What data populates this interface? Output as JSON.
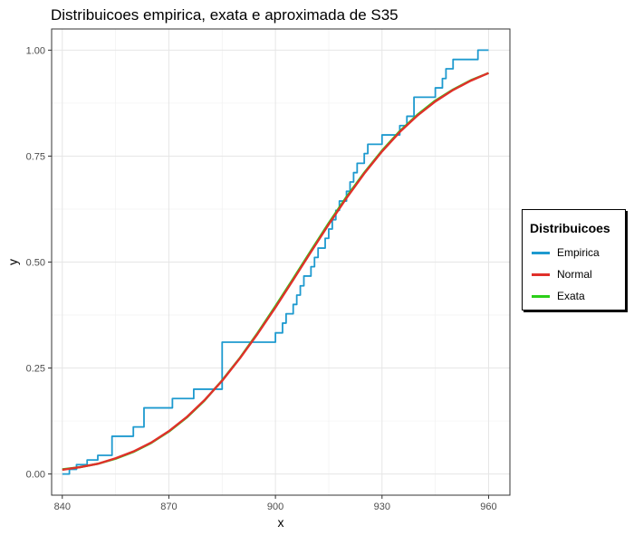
{
  "chart_data": {
    "type": "line",
    "title": "Distribuicoes empirica, exata e aproximada de S35",
    "xlabel": "x",
    "ylabel": "y",
    "xlim": [
      837,
      966
    ],
    "ylim": [
      -0.05,
      1.05
    ],
    "x_ticks": [
      840,
      870,
      900,
      930,
      960
    ],
    "y_ticks": [
      0.0,
      0.25,
      0.5,
      0.75,
      1.0
    ],
    "y_tick_labels": [
      "0.00",
      "0.25",
      "0.50",
      "0.75",
      "1.00"
    ],
    "grid": true,
    "legend": {
      "title": "Distribuicoes",
      "position": "right"
    },
    "series": [
      {
        "name": "Empirica",
        "color": "#1E9ACF",
        "step": true,
        "points": [
          [
            840,
            0.0
          ],
          [
            842,
            0.011
          ],
          [
            844,
            0.022
          ],
          [
            847,
            0.033
          ],
          [
            850,
            0.044
          ],
          [
            854,
            0.089
          ],
          [
            857,
            0.089
          ],
          [
            860,
            0.111
          ],
          [
            863,
            0.156
          ],
          [
            866,
            0.156
          ],
          [
            869,
            0.156
          ],
          [
            871,
            0.178
          ],
          [
            874,
            0.178
          ],
          [
            877,
            0.2
          ],
          [
            881,
            0.2
          ],
          [
            885,
            0.311
          ],
          [
            889,
            0.311
          ],
          [
            893,
            0.311
          ],
          [
            897,
            0.311
          ],
          [
            900,
            0.333
          ],
          [
            902,
            0.356
          ],
          [
            903,
            0.378
          ],
          [
            905,
            0.4
          ],
          [
            906,
            0.422
          ],
          [
            907,
            0.444
          ],
          [
            908,
            0.467
          ],
          [
            910,
            0.489
          ],
          [
            911,
            0.511
          ],
          [
            912,
            0.533
          ],
          [
            914,
            0.556
          ],
          [
            915,
            0.578
          ],
          [
            916,
            0.6
          ],
          [
            917,
            0.622
          ],
          [
            918,
            0.644
          ],
          [
            920,
            0.667
          ],
          [
            921,
            0.689
          ],
          [
            922,
            0.711
          ],
          [
            923,
            0.733
          ],
          [
            925,
            0.756
          ],
          [
            926,
            0.778
          ],
          [
            928,
            0.778
          ],
          [
            930,
            0.8
          ],
          [
            935,
            0.822
          ],
          [
            937,
            0.844
          ],
          [
            939,
            0.889
          ],
          [
            943,
            0.889
          ],
          [
            945,
            0.911
          ],
          [
            947,
            0.933
          ],
          [
            948,
            0.956
          ],
          [
            950,
            0.978
          ],
          [
            955,
            0.978
          ],
          [
            957,
            1.0
          ],
          [
            960,
            1.0
          ]
        ]
      },
      {
        "name": "Normal",
        "color": "#E0302A",
        "points": [
          [
            840,
            0.01
          ],
          [
            845,
            0.016
          ],
          [
            850,
            0.024
          ],
          [
            855,
            0.037
          ],
          [
            860,
            0.053
          ],
          [
            865,
            0.074
          ],
          [
            870,
            0.101
          ],
          [
            875,
            0.134
          ],
          [
            880,
            0.174
          ],
          [
            885,
            0.22
          ],
          [
            890,
            0.273
          ],
          [
            895,
            0.331
          ],
          [
            900,
            0.393
          ],
          [
            905,
            0.458
          ],
          [
            910,
            0.524
          ],
          [
            915,
            0.589
          ],
          [
            920,
            0.651
          ],
          [
            925,
            0.709
          ],
          [
            930,
            0.761
          ],
          [
            935,
            0.807
          ],
          [
            940,
            0.846
          ],
          [
            945,
            0.879
          ],
          [
            950,
            0.906
          ],
          [
            955,
            0.928
          ],
          [
            960,
            0.946
          ]
        ]
      },
      {
        "name": "Exata",
        "color": "#2BCF18",
        "points": [
          [
            840,
            0.011
          ],
          [
            845,
            0.016
          ],
          [
            850,
            0.024
          ],
          [
            855,
            0.036
          ],
          [
            860,
            0.052
          ],
          [
            865,
            0.073
          ],
          [
            870,
            0.1
          ],
          [
            875,
            0.133
          ],
          [
            880,
            0.173
          ],
          [
            885,
            0.221
          ],
          [
            890,
            0.274
          ],
          [
            895,
            0.333
          ],
          [
            900,
            0.396
          ],
          [
            905,
            0.461
          ],
          [
            910,
            0.527
          ],
          [
            915,
            0.592
          ],
          [
            920,
            0.654
          ],
          [
            925,
            0.711
          ],
          [
            930,
            0.763
          ],
          [
            935,
            0.809
          ],
          [
            940,
            0.848
          ],
          [
            945,
            0.881
          ],
          [
            950,
            0.907
          ],
          [
            955,
            0.929
          ],
          [
            960,
            0.946
          ]
        ]
      }
    ]
  }
}
